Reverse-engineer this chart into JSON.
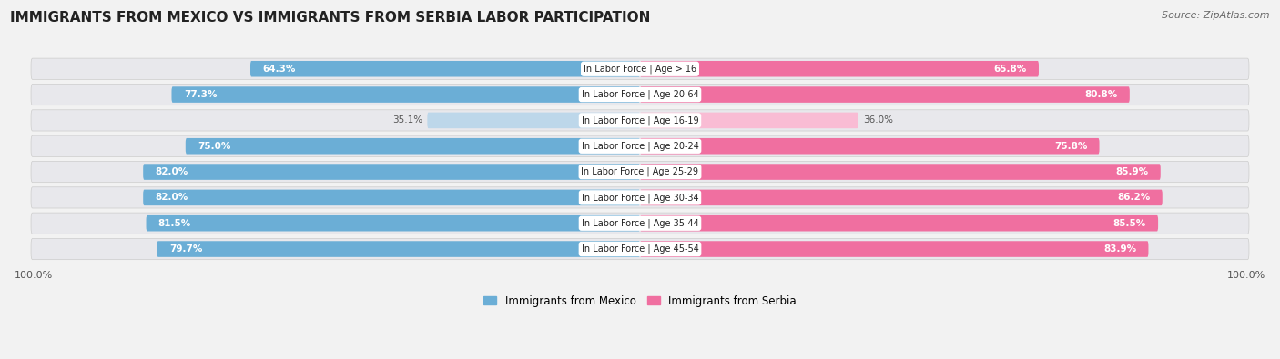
{
  "title": "IMMIGRANTS FROM MEXICO VS IMMIGRANTS FROM SERBIA LABOR PARTICIPATION",
  "source": "Source: ZipAtlas.com",
  "categories": [
    "In Labor Force | Age > 16",
    "In Labor Force | Age 20-64",
    "In Labor Force | Age 16-19",
    "In Labor Force | Age 20-24",
    "In Labor Force | Age 25-29",
    "In Labor Force | Age 30-34",
    "In Labor Force | Age 35-44",
    "In Labor Force | Age 45-54"
  ],
  "mexico_values": [
    64.3,
    77.3,
    35.1,
    75.0,
    82.0,
    82.0,
    81.5,
    79.7
  ],
  "serbia_values": [
    65.8,
    80.8,
    36.0,
    75.8,
    85.9,
    86.2,
    85.5,
    83.9
  ],
  "mexico_color_dark": "#6baed6",
  "mexico_color_light": "#bdd7ea",
  "serbia_color_dark": "#f06fa0",
  "serbia_color_light": "#f9bcd4",
  "row_bg_color": "#e8e8ec",
  "bg_color": "#f2f2f2",
  "bar_height": 0.62,
  "max_value": 100.0,
  "legend_mexico": "Immigrants from Mexico",
  "legend_serbia": "Immigrants from Serbia",
  "title_fontsize": 11,
  "source_fontsize": 8,
  "label_fontsize": 7.5,
  "cat_fontsize": 7.0
}
